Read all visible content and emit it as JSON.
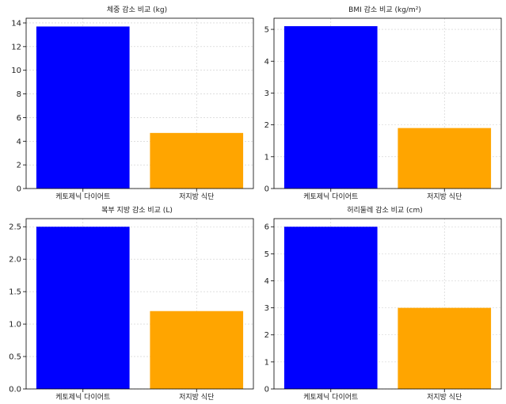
{
  "colors": {
    "keto": "#0000ff",
    "lowfat": "#ffa500",
    "grid": "#cccccc",
    "axis": "#000000"
  },
  "chart_data": [
    {
      "type": "bar",
      "title": "체중 감소 비교 (kg)",
      "categories": [
        "케토제닉 다이어트",
        "저지방 식단"
      ],
      "values": [
        13.7,
        4.7
      ],
      "ylim": [
        0,
        14.4
      ],
      "yticks": [
        "0",
        "2",
        "4",
        "6",
        "8",
        "10",
        "12",
        "14"
      ],
      "grid": true
    },
    {
      "type": "bar",
      "title": "BMI 감소 비교 (kg/m²)",
      "categories": [
        "케토제닉 다이어트",
        "저지방 식단"
      ],
      "values": [
        5.1,
        1.9
      ],
      "ylim": [
        0,
        5.35
      ],
      "yticks": [
        "0",
        "1",
        "2",
        "3",
        "4",
        "5"
      ],
      "grid": true
    },
    {
      "type": "bar",
      "title": "복부 지방 감소 비교 (L)",
      "categories": [
        "케토제닉 다이어트",
        "저지방 식단"
      ],
      "values": [
        2.5,
        1.2
      ],
      "ylim": [
        0,
        2.625
      ],
      "yticks": [
        "0.0",
        "0.5",
        "1.0",
        "1.5",
        "2.0",
        "2.5"
      ],
      "grid": true
    },
    {
      "type": "bar",
      "title": "허리둘레 감소 비교 (cm)",
      "categories": [
        "케토제닉 다이어트",
        "저지방 식단"
      ],
      "values": [
        6,
        3
      ],
      "ylim": [
        0,
        6.3
      ],
      "yticks": [
        "0",
        "1",
        "2",
        "3",
        "4",
        "5",
        "6"
      ],
      "grid": true
    }
  ]
}
